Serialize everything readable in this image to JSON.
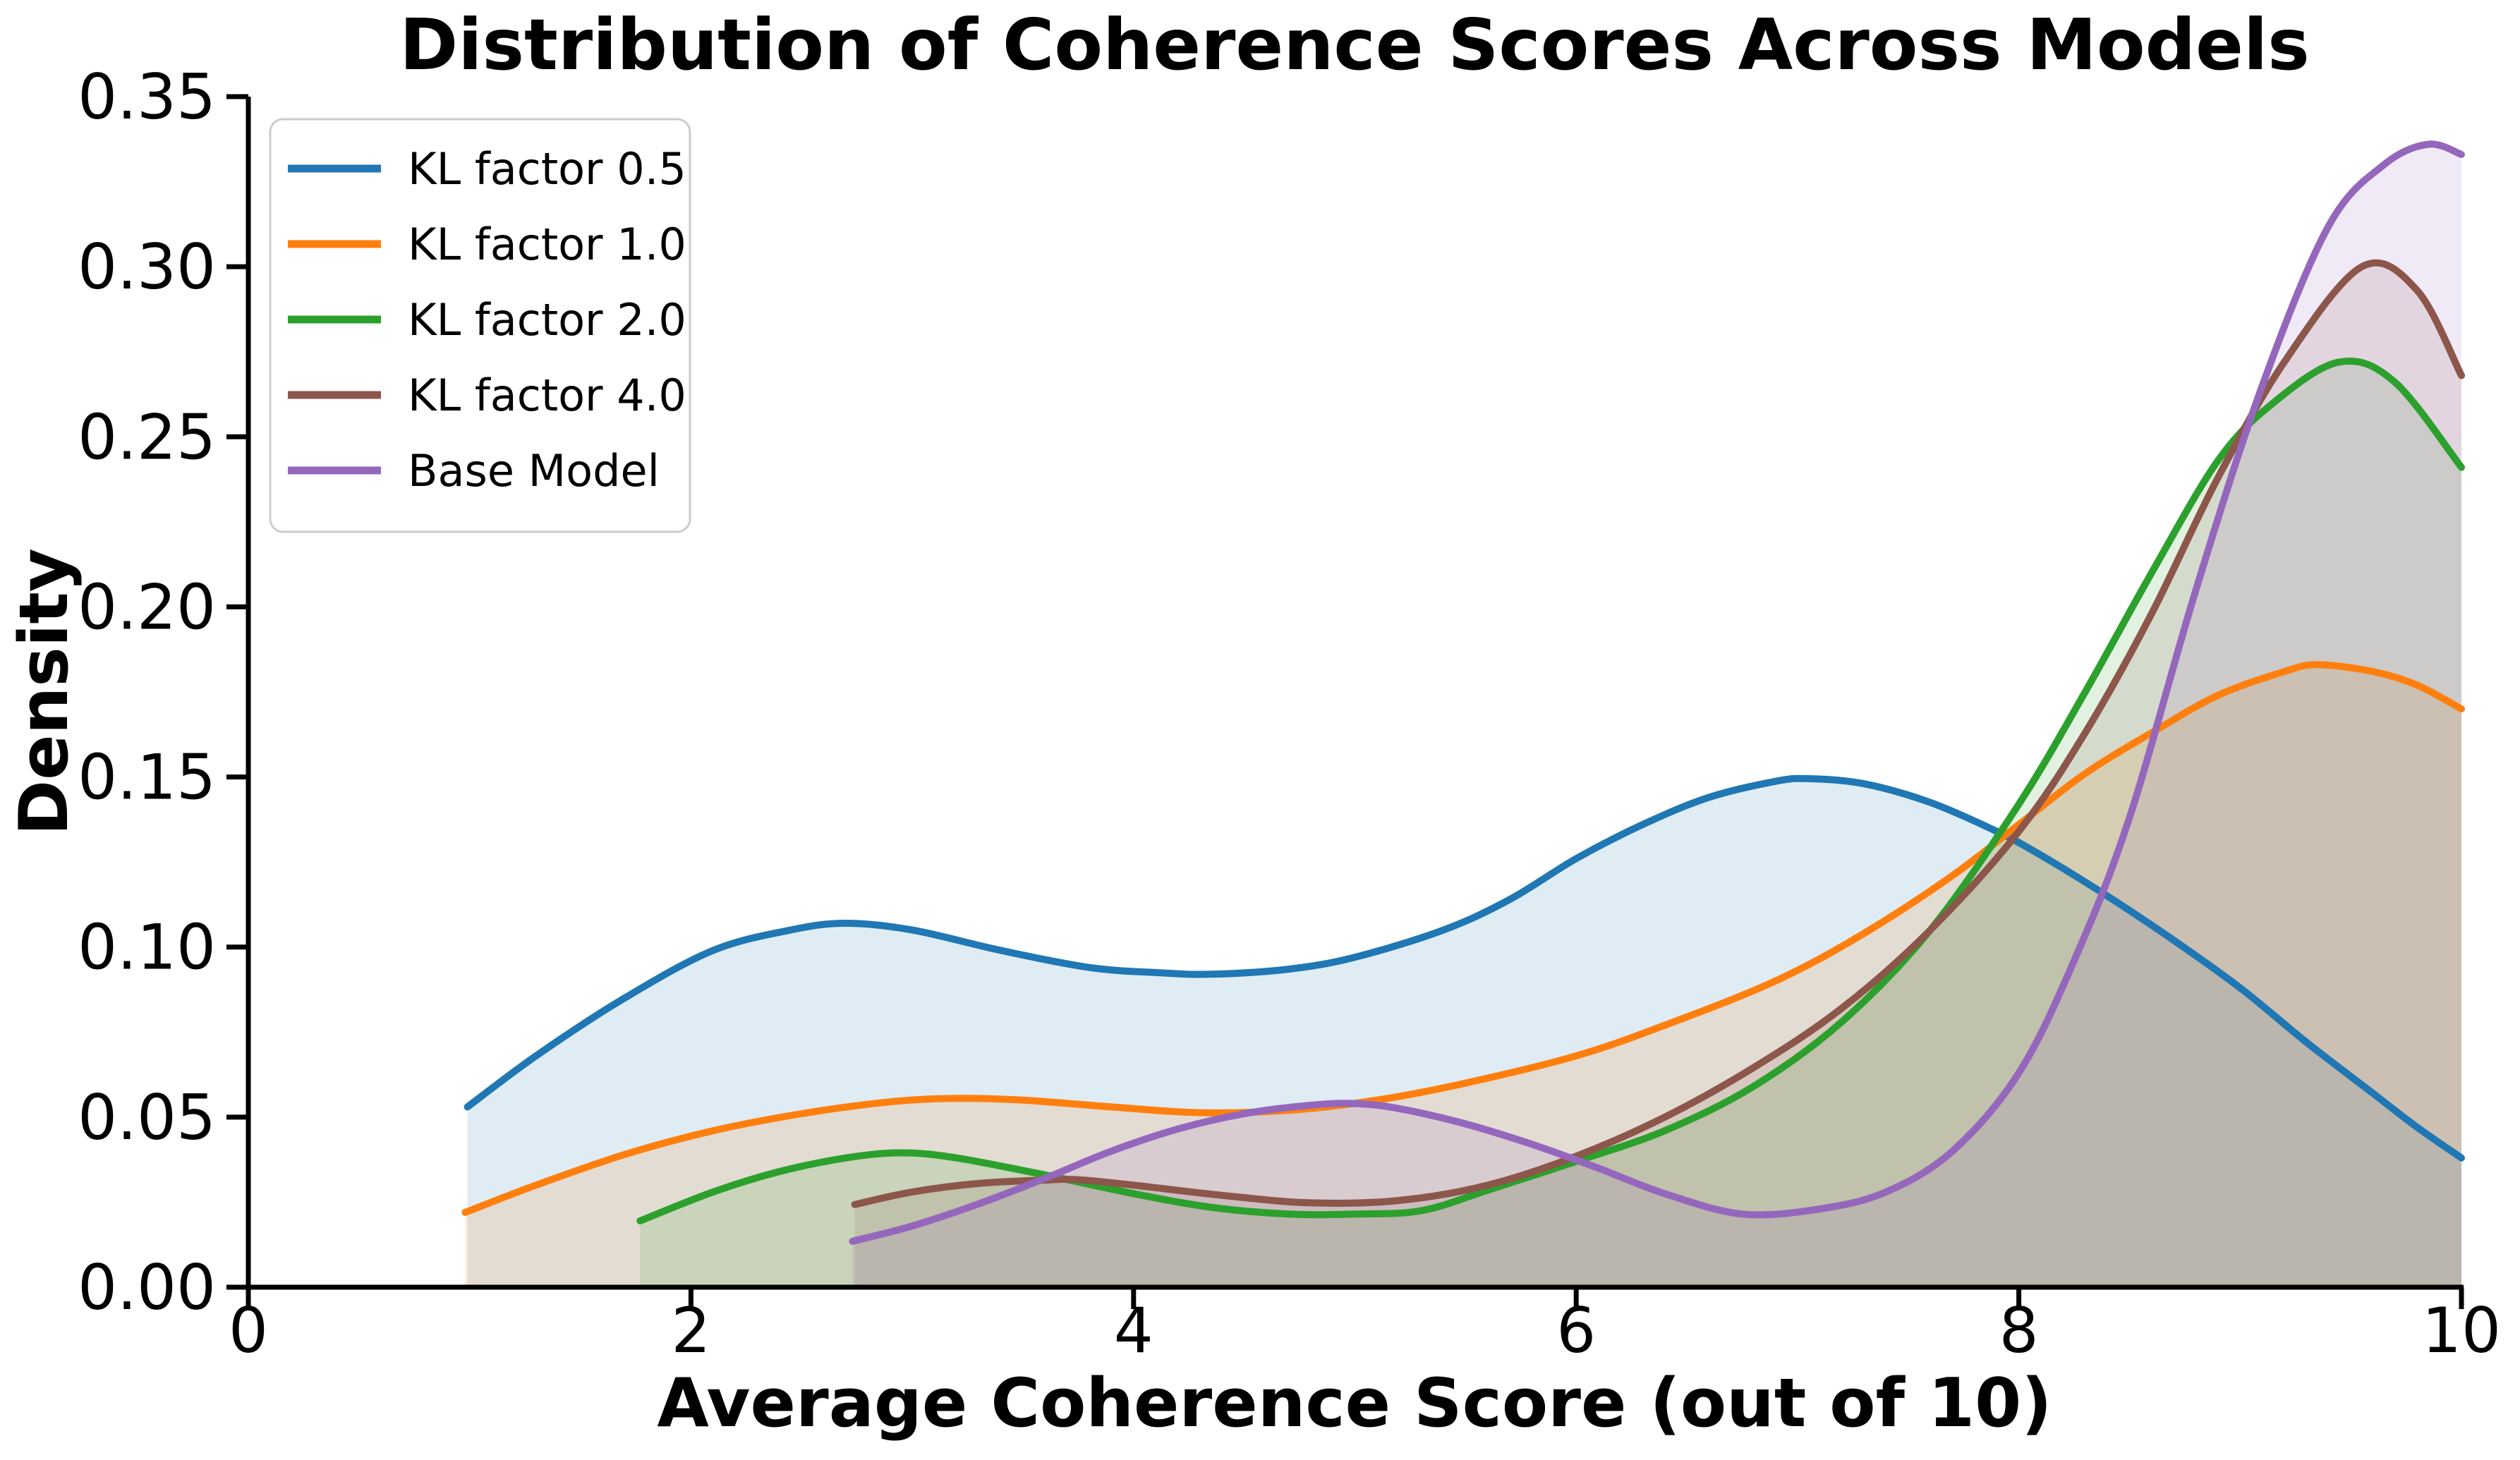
{
  "chart_data": {
    "type": "area",
    "subtype": "kde-density",
    "title": "Distribution of Coherence Scores Across Models",
    "xlabel": "Average Coherence Score (out of 10)",
    "ylabel": "Density",
    "xlim": [
      0,
      10
    ],
    "ylim": [
      0,
      0.35
    ],
    "grid": false,
    "background_color": "#ffffff",
    "axis_color": "#000000",
    "fill_alpha": 0.14,
    "line_width": 10,
    "xticks": {
      "values": [
        0,
        2,
        4,
        6,
        8,
        10
      ],
      "labels": [
        "0",
        "2",
        "4",
        "6",
        "8",
        "10"
      ]
    },
    "yticks": {
      "values": [
        0.0,
        0.05,
        0.1,
        0.15,
        0.2,
        0.25,
        0.3,
        0.35
      ],
      "labels": [
        "0.00",
        "0.05",
        "0.10",
        "0.15",
        "0.20",
        "0.25",
        "0.30",
        "0.35"
      ]
    },
    "legend": {
      "position": "upper left",
      "border_color": "#cccccc",
      "entries": [
        "KL factor 0.5",
        "KL factor 1.0",
        "KL factor 2.0",
        "KL factor 4.0",
        "Base Model"
      ]
    },
    "series": [
      {
        "name": "KL factor 0.5",
        "color": "#1f77b4",
        "x": [
          0.99,
          1.3,
          1.7,
          2.1,
          2.45,
          2.7,
          3.0,
          3.4,
          3.8,
          4.1,
          4.35,
          4.7,
          5.0,
          5.4,
          5.7,
          6.0,
          6.3,
          6.6,
          6.9,
          7.05,
          7.3,
          7.6,
          7.9,
          8.1,
          8.4,
          8.7,
          9.0,
          9.3,
          9.6,
          9.8,
          10.0
        ],
        "y": [
          0.053,
          0.068,
          0.085,
          0.099,
          0.105,
          0.107,
          0.105,
          0.099,
          0.094,
          0.0925,
          0.092,
          0.0935,
          0.097,
          0.105,
          0.114,
          0.126,
          0.136,
          0.144,
          0.1487,
          0.1495,
          0.148,
          0.1425,
          0.134,
          0.127,
          0.115,
          0.102,
          0.088,
          0.072,
          0.057,
          0.047,
          0.038
        ],
        "peak_annotation": "local max 0.107 at 2.7, valley 0.092 at 4.35, max 0.150 at 7.0"
      },
      {
        "name": "KL factor 1.0",
        "color": "#ff7f0e",
        "x": [
          0.98,
          1.3,
          1.7,
          2.1,
          2.5,
          2.9,
          3.2,
          3.5,
          3.9,
          4.3,
          4.7,
          5.1,
          5.5,
          6.0,
          6.4,
          6.9,
          7.3,
          7.7,
          8.0,
          8.3,
          8.6,
          8.9,
          9.2,
          9.35,
          9.6,
          9.8,
          10.0
        ],
        "y": [
          0.022,
          0.03,
          0.039,
          0.046,
          0.051,
          0.0545,
          0.0555,
          0.055,
          0.053,
          0.0513,
          0.052,
          0.055,
          0.06,
          0.068,
          0.077,
          0.09,
          0.104,
          0.121,
          0.136,
          0.151,
          0.163,
          0.174,
          0.181,
          0.183,
          0.181,
          0.177,
          0.17
        ],
        "peak_annotation": "local max 0.055 at 3.2, dip 0.051 at 4.3, max 0.183 at 9.35"
      },
      {
        "name": "KL factor 2.0",
        "color": "#2ca02c",
        "x": [
          1.77,
          2.1,
          2.4,
          2.7,
          2.95,
          3.2,
          3.6,
          4.0,
          4.35,
          4.7,
          5.0,
          5.3,
          5.6,
          6.0,
          6.4,
          6.8,
          7.2,
          7.6,
          8.0,
          8.3,
          8.6,
          8.9,
          9.15,
          9.45,
          9.7,
          10.0
        ],
        "y": [
          0.0195,
          0.028,
          0.034,
          0.038,
          0.0395,
          0.038,
          0.033,
          0.0275,
          0.0235,
          0.0215,
          0.0215,
          0.0225,
          0.0285,
          0.037,
          0.046,
          0.059,
          0.078,
          0.105,
          0.142,
          0.175,
          0.21,
          0.243,
          0.26,
          0.272,
          0.266,
          0.241
        ],
        "peak_annotation": "local max 0.039 at 2.95, dip 0.021 at 4.8, max 0.272 at 9.45"
      },
      {
        "name": "KL factor 4.0",
        "color": "#8c564b",
        "x": [
          2.74,
          3.0,
          3.3,
          3.6,
          3.75,
          4.0,
          4.4,
          4.8,
          5.2,
          5.6,
          6.0,
          6.4,
          6.8,
          7.2,
          7.6,
          8.0,
          8.3,
          8.6,
          8.9,
          9.2,
          9.55,
          9.8,
          10.0
        ],
        "y": [
          0.0243,
          0.028,
          0.0305,
          0.0315,
          0.0316,
          0.03,
          0.027,
          0.0248,
          0.0255,
          0.03,
          0.0385,
          0.05,
          0.0645,
          0.082,
          0.105,
          0.134,
          0.163,
          0.198,
          0.238,
          0.272,
          0.3,
          0.293,
          0.268
        ],
        "peak_annotation": "local max 0.032 at 3.75, dip 0.025 at 4.9, max 0.300 at 9.55"
      },
      {
        "name": "Base Model",
        "color": "#9467bd",
        "x": [
          2.73,
          3.0,
          3.3,
          3.6,
          3.9,
          4.2,
          4.5,
          4.8,
          5.0,
          5.2,
          5.5,
          5.8,
          6.1,
          6.4,
          6.75,
          7.1,
          7.4,
          7.7,
          8.0,
          8.25,
          8.5,
          8.8,
          9.1,
          9.4,
          9.65,
          9.85,
          10.0
        ],
        "y": [
          0.0135,
          0.018,
          0.0245,
          0.032,
          0.04,
          0.0465,
          0.051,
          0.0535,
          0.054,
          0.0525,
          0.048,
          0.042,
          0.035,
          0.0275,
          0.0215,
          0.023,
          0.028,
          0.04,
          0.063,
          0.096,
          0.138,
          0.205,
          0.265,
          0.312,
          0.33,
          0.336,
          0.333
        ],
        "peak_annotation": "local max 0.054 at 5.0, dip 0.022 at 6.75, max 0.336 at 9.85"
      }
    ]
  }
}
